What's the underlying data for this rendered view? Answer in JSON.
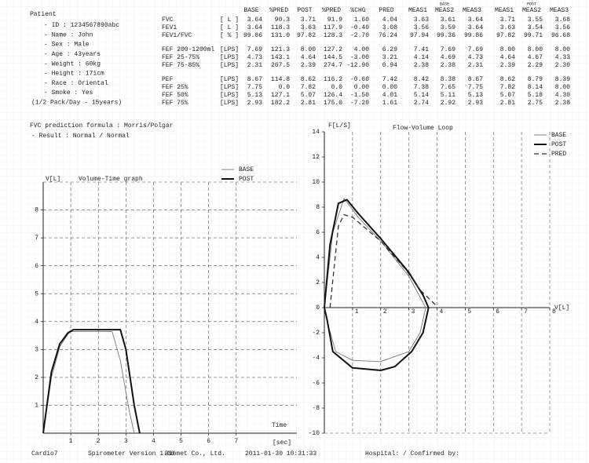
{
  "patient": {
    "heading": "Patient",
    "lines": [
      "- ID : 1234567890abc",
      "- Name : John",
      "- Sex : Male",
      "- Age : 43years",
      "- Weight : 60kg",
      "- Height : 171cm",
      "- Race : Oriental",
      "- Smoke : Yes",
      "(1/2 Pack/Day - 15years)"
    ]
  },
  "table": {
    "group_labels": [
      "BASE",
      "POST"
    ],
    "columns": [
      "BASE",
      "%PRED",
      "POST",
      "%PRED",
      "%CHG",
      "PRED",
      "MEAS1",
      "MEAS2",
      "MEAS3",
      "MEAS1",
      "MEAS2",
      "MEAS3"
    ],
    "rows": [
      {
        "label": "FVC",
        "unit": "[ L ]",
        "cells": [
          "3.64",
          "90.3",
          "3.71",
          "91.9",
          "1.60",
          "4.04",
          "3.63",
          "3.61",
          "3.64",
          "3.71",
          "3.55",
          "3.68"
        ]
      },
      {
        "label": "FEV1",
        "unit": "[ L ]",
        "cells": [
          "3.64",
          "118.3",
          "3.63",
          "117.9",
          "-0.40",
          "3.08",
          "3.56",
          "3.59",
          "3.64",
          "3.63",
          "3.54",
          "3.56"
        ]
      },
      {
        "label": "FEV1/FVC",
        "unit": "[ % ]",
        "cells": [
          "99.86",
          "131.0",
          "97.82",
          "128.3",
          "-2.70",
          "76.24",
          "97.94",
          "99.36",
          "99.86",
          "97.82",
          "99.71",
          "96.68"
        ]
      },
      {
        "label": "FEF 200-1200ml",
        "unit": "[LPS]",
        "cells": [
          "7.69",
          "121.3",
          "8.00",
          "127.2",
          "4.00",
          "6.29",
          "7.41",
          "7.69",
          "7.69",
          "8.00",
          "8.00",
          "8.00"
        ]
      },
      {
        "label": "FEF 25-75%",
        "unit": "[LPS]",
        "cells": [
          "4.73",
          "143.1",
          "4.64",
          "144.5",
          "-3.00",
          "3.21",
          "4.14",
          "4.69",
          "4.73",
          "4.64",
          "4.67",
          "4.33"
        ]
      },
      {
        "label": "FEF 75-85%",
        "unit": "[LPS]",
        "cells": [
          "2.31",
          "267.5",
          "2.39",
          "274.7",
          "-12.90",
          "0.94",
          "2.38",
          "2.38",
          "2.31",
          "2.39",
          "2.29",
          "2.30"
        ]
      },
      {
        "label": "PEF",
        "unit": "[LPS]",
        "cells": [
          "8.67",
          "114.8",
          "8.62",
          "116.2",
          "-0.60",
          "7.42",
          "8.42",
          "8.38",
          "8.67",
          "8.62",
          "8.79",
          "8.39"
        ]
      },
      {
        "label": "FEF 25%",
        "unit": "[LPS]",
        "cells": [
          "7.75",
          "0.0",
          "7.82",
          "0.0",
          "0.00",
          "0.00",
          "7.38",
          "7.65",
          "7.75",
          "7.82",
          "8.14",
          "8.00"
        ]
      },
      {
        "label": "FEF 50%",
        "unit": "[LPS]",
        "cells": [
          "5.13",
          "127.1",
          "5.07",
          "126.4",
          "-1.50",
          "4.01",
          "5.14",
          "5.11",
          "5.13",
          "5.07",
          "5.18",
          "4.30"
        ]
      },
      {
        "label": "FEF 75%",
        "unit": "[LPS]",
        "cells": [
          "2.93",
          "182.2",
          "2.81",
          "175.0",
          "-7.20",
          "1.61",
          "2.74",
          "2.92",
          "2.93",
          "2.81",
          "2.75",
          "2.38"
        ]
      }
    ]
  },
  "formula": [
    "FVC prediction formula : Morris/Polgar",
    "- Result : Normal / Normal"
  ],
  "chart_data": [
    {
      "type": "line",
      "title": "Volume-Time graph",
      "y_label": "V[L]",
      "x_label": "Time",
      "x_unit": "[sec]",
      "xlim": [
        0,
        9.2
      ],
      "ylim": [
        0,
        9.0
      ],
      "xticks": [
        1,
        2,
        3,
        4,
        5,
        6,
        7
      ],
      "yticks": [
        1,
        2,
        3,
        4,
        5,
        6,
        7,
        8
      ],
      "grid": true,
      "series": [
        {
          "name": "BASE",
          "color": "#777777",
          "line_style": "thin",
          "x": [
            0,
            0.3,
            0.6,
            0.9,
            1.0,
            2.5,
            2.8,
            3.1,
            3.3
          ],
          "values": [
            0,
            2.0,
            3.1,
            3.55,
            3.64,
            3.64,
            2.6,
            0.9,
            0
          ]
        },
        {
          "name": "POST",
          "color": "#111111",
          "line_style": "thick",
          "x": [
            0,
            0.3,
            0.6,
            0.9,
            1.1,
            2.8,
            3.0,
            3.3,
            3.5
          ],
          "values": [
            0,
            2.2,
            3.2,
            3.6,
            3.71,
            3.71,
            3.0,
            1.0,
            0
          ]
        }
      ]
    },
    {
      "type": "line",
      "title": "Flow-Volume Loop",
      "y_label": "F[L/S]",
      "x_label": "V[L]",
      "xlim": [
        0,
        8
      ],
      "ylim": [
        -10,
        14
      ],
      "xticks": [
        1,
        2,
        3,
        4,
        5,
        6,
        7,
        8
      ],
      "yticks": [
        -10,
        -8,
        -6,
        -4,
        -2,
        0,
        2,
        4,
        6,
        8,
        10,
        12,
        14
      ],
      "grid": true,
      "series": [
        {
          "name": "BASE",
          "color": "#777777",
          "line_style": "thin",
          "x": [
            0,
            0.3,
            0.7,
            1.2,
            2,
            3,
            3.6,
            3.4,
            3,
            2,
            1,
            0.4,
            0.15,
            0
          ],
          "values": [
            0,
            6,
            8.7,
            7.2,
            5.3,
            2.5,
            0,
            -2,
            -3.5,
            -4.3,
            -4.2,
            -3.5,
            -1.5,
            0
          ]
        },
        {
          "name": "POST",
          "color": "#111111",
          "line_style": "thick",
          "x": [
            0,
            0.2,
            0.5,
            0.8,
            1.2,
            2,
            3,
            3.5,
            3.7,
            3.5,
            3.1,
            2.5,
            2,
            1,
            0.3,
            0.1,
            0
          ],
          "values": [
            0,
            5,
            8.3,
            8.6,
            7.5,
            5.5,
            2.8,
            1,
            0,
            -2,
            -3.5,
            -4.7,
            -5.0,
            -4.8,
            -3.5,
            -1,
            0
          ]
        },
        {
          "name": "PRED",
          "color": "#333333",
          "line_style": "dashed",
          "x": [
            0.2,
            0.5,
            0.7,
            1,
            2,
            2.9,
            3.4,
            4.0
          ],
          "values": [
            0,
            6.5,
            7.4,
            7.2,
            5.3,
            3.0,
            1.4,
            0.1
          ]
        }
      ]
    }
  ],
  "footer": [
    "Cardio7",
    "Spirometer Version 1.00",
    "Biomet Co., Ltd.",
    "2011-01-30 10:31:33",
    "Hospital: / Confirmed by:"
  ]
}
